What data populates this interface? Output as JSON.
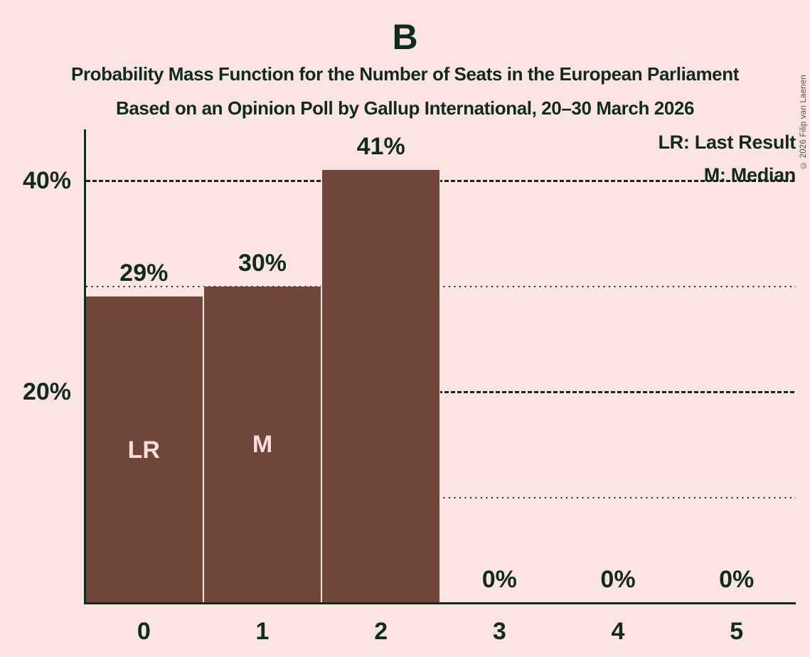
{
  "copyright": "© 2026 Filip van Laenen",
  "colors": {
    "background": "#fce4e3",
    "text": "#0f2b1d",
    "bar": "#6f4639",
    "bar_label": "#fbdddc",
    "axis": "#0f2b1d"
  },
  "chart_data": {
    "type": "bar",
    "title": "B",
    "subtitle1": "Probability Mass Function for the Number of Seats in the European Parliament",
    "subtitle2": "Based on an Opinion Poll by Gallup International, 20–30 March 2026",
    "categories": [
      "0",
      "1",
      "2",
      "3",
      "4",
      "5"
    ],
    "values": [
      29,
      30,
      41,
      0,
      0,
      0
    ],
    "value_labels": [
      "29%",
      "30%",
      "41%",
      "0%",
      "0%",
      "0%"
    ],
    "bar_annotations": [
      "LR",
      "M",
      "",
      "",
      "",
      ""
    ],
    "legend": [
      "LR: Last Result",
      "M: Median"
    ],
    "legend_position": "top-right",
    "xlabel": "",
    "ylabel": "",
    "ylim": [
      0,
      45
    ],
    "y_ticks": [
      {
        "pct": 40,
        "label": "40%"
      },
      {
        "pct": 20,
        "label": "20%"
      }
    ],
    "gridlines": [
      {
        "pct": 40,
        "style": "dashed"
      },
      {
        "pct": 30,
        "style": "dotted"
      },
      {
        "pct": 20,
        "style": "dashed"
      },
      {
        "pct": 10,
        "style": "dotted"
      }
    ]
  }
}
